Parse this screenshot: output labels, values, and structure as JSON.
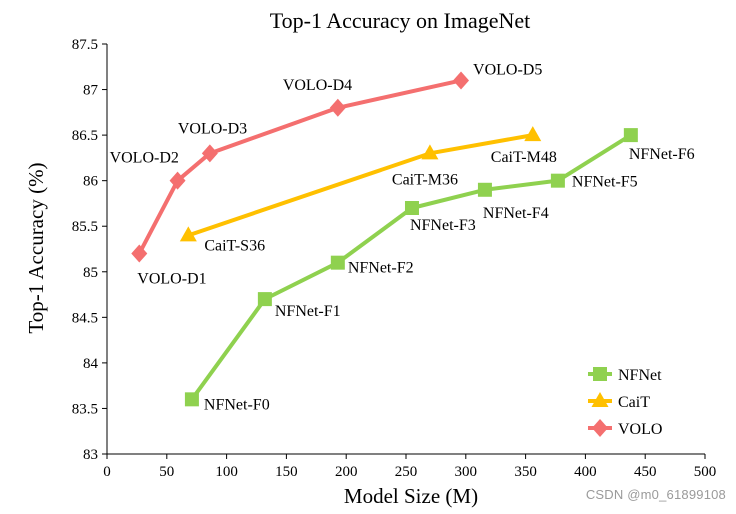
{
  "chart_data": {
    "type": "line",
    "title": "Top-1 Accuracy on ImageNet",
    "xlabel": "Model Size (M)",
    "ylabel": "Top-1 Accuracy (%)",
    "xlim": [
      0,
      500
    ],
    "ylim": [
      83,
      87.5
    ],
    "x_ticks": [
      0,
      50,
      100,
      150,
      200,
      250,
      300,
      350,
      400,
      450,
      500
    ],
    "y_ticks": [
      83,
      83.5,
      84,
      84.5,
      85,
      85.5,
      86,
      86.5,
      87,
      87.5
    ],
    "x_tick_labels": [
      "0",
      "50",
      "100",
      "150",
      "200",
      "250",
      "300",
      "350",
      "400",
      "450",
      "500"
    ],
    "y_tick_labels": [
      "83",
      "83.5",
      "84",
      "84.5",
      "85",
      "85.5",
      "86",
      "86.5",
      "87",
      "87.5"
    ],
    "grid": false,
    "legend_position": "bottom-right",
    "series": [
      {
        "name": "NFNet",
        "color": "#8fd14f",
        "marker": "square",
        "x": [
          71,
          132,
          193,
          255,
          316,
          377,
          438
        ],
        "y": [
          83.6,
          84.7,
          85.1,
          85.7,
          85.9,
          86.0,
          86.5
        ],
        "point_labels": [
          "NFNet-F0",
          "NFNet-F1",
          "NFNet-F2",
          "NFNet-F3",
          "NFNet-F4",
          "NFNet-F5",
          "NFNet-F6"
        ]
      },
      {
        "name": "CaiT",
        "color": "#ffc000",
        "marker": "triangle",
        "x": [
          68,
          270,
          356
        ],
        "y": [
          85.4,
          86.3,
          86.5
        ],
        "point_labels": [
          "CaiT-S36",
          "CaiT-M36",
          "CaiT-M48"
        ]
      },
      {
        "name": "VOLO",
        "color": "#f46f6f",
        "marker": "diamond",
        "x": [
          27,
          59,
          86,
          193,
          296
        ],
        "y": [
          85.2,
          86.0,
          86.3,
          86.8,
          87.1
        ],
        "point_labels": [
          "VOLO-D1",
          "VOLO-D2",
          "VOLO-D3",
          "VOLO-D4",
          "VOLO-D5"
        ]
      }
    ]
  },
  "watermark": "CSDN @m0_61899108"
}
